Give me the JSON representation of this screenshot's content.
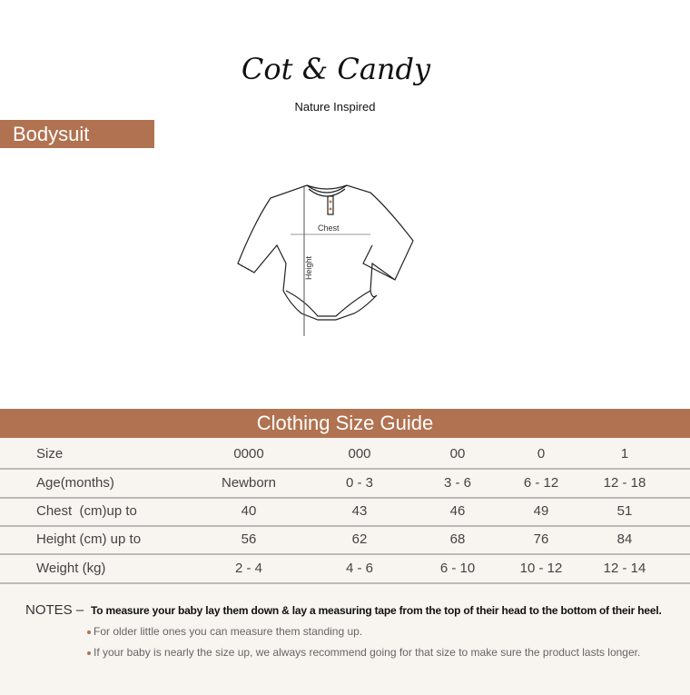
{
  "brand": {
    "name": "Cot & Candy",
    "tagline": "Nature Inspired"
  },
  "product": {
    "title": "Bodysuit"
  },
  "illustration": {
    "chest_label": "Chest",
    "height_label": "Height"
  },
  "guide": {
    "title": "Clothing Size Guide",
    "accent_color": "#b07250",
    "rows": [
      {
        "label": "Size",
        "values": [
          "0000",
          "000",
          "00",
          "0",
          "1"
        ]
      },
      {
        "label": "Age(months)",
        "values": [
          "Newborn",
          "0 - 3",
          "3 - 6",
          "6 - 12",
          "12 - 18"
        ]
      },
      {
        "label": "Chest  (cm)up to",
        "values": [
          "40",
          "43",
          "46",
          "49",
          "51"
        ]
      },
      {
        "label": "Height (cm) up to",
        "values": [
          "56",
          "62",
          "68",
          "76",
          "84"
        ]
      },
      {
        "label": "Weight (kg)",
        "values": [
          "2 - 4",
          "4 - 6",
          "6 - 10",
          "10 - 12",
          "12 - 14"
        ]
      }
    ]
  },
  "notes": {
    "label": "NOTES –",
    "main": "To measure your baby lay them down & lay a measuring tape from the top of their head to the bottom of their heel.",
    "bullets": [
      "For older little ones you can measure them standing up.",
      "If your baby is nearly the size up, we always recommend going for that size to make sure the product lasts longer."
    ]
  }
}
